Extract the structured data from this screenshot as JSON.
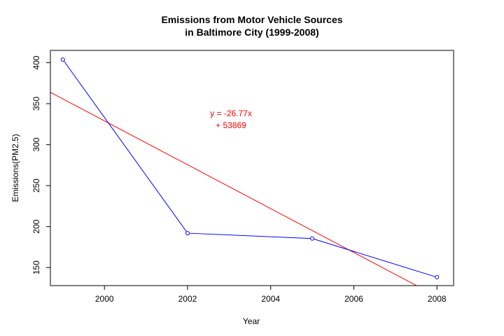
{
  "chart_data": {
    "type": "line",
    "title_lines": [
      "Emissions from Motor Vehicle Sources",
      "in Baltimore City (1999-2008)"
    ],
    "xlabel": "Year",
    "ylabel": "Emissions(PM2.5)",
    "xlim": [
      1998.7,
      2008.4
    ],
    "ylim": [
      128,
      415
    ],
    "xticks": [
      2000,
      2002,
      2004,
      2006,
      2008
    ],
    "yticks": [
      150,
      200,
      250,
      300,
      350,
      400
    ],
    "grid": false,
    "series": [
      {
        "color": "#0000ff",
        "marker": "open-circle",
        "x": [
          1999,
          2002,
          2005,
          2008
        ],
        "y": [
          403.8,
          192.0,
          185.4,
          138.2
        ]
      }
    ],
    "regression": {
      "color": "#ff0000",
      "slope": -26.77,
      "intercept": 53869,
      "label_lines": [
        "y = -26.77x",
        "+ 53869"
      ]
    }
  }
}
